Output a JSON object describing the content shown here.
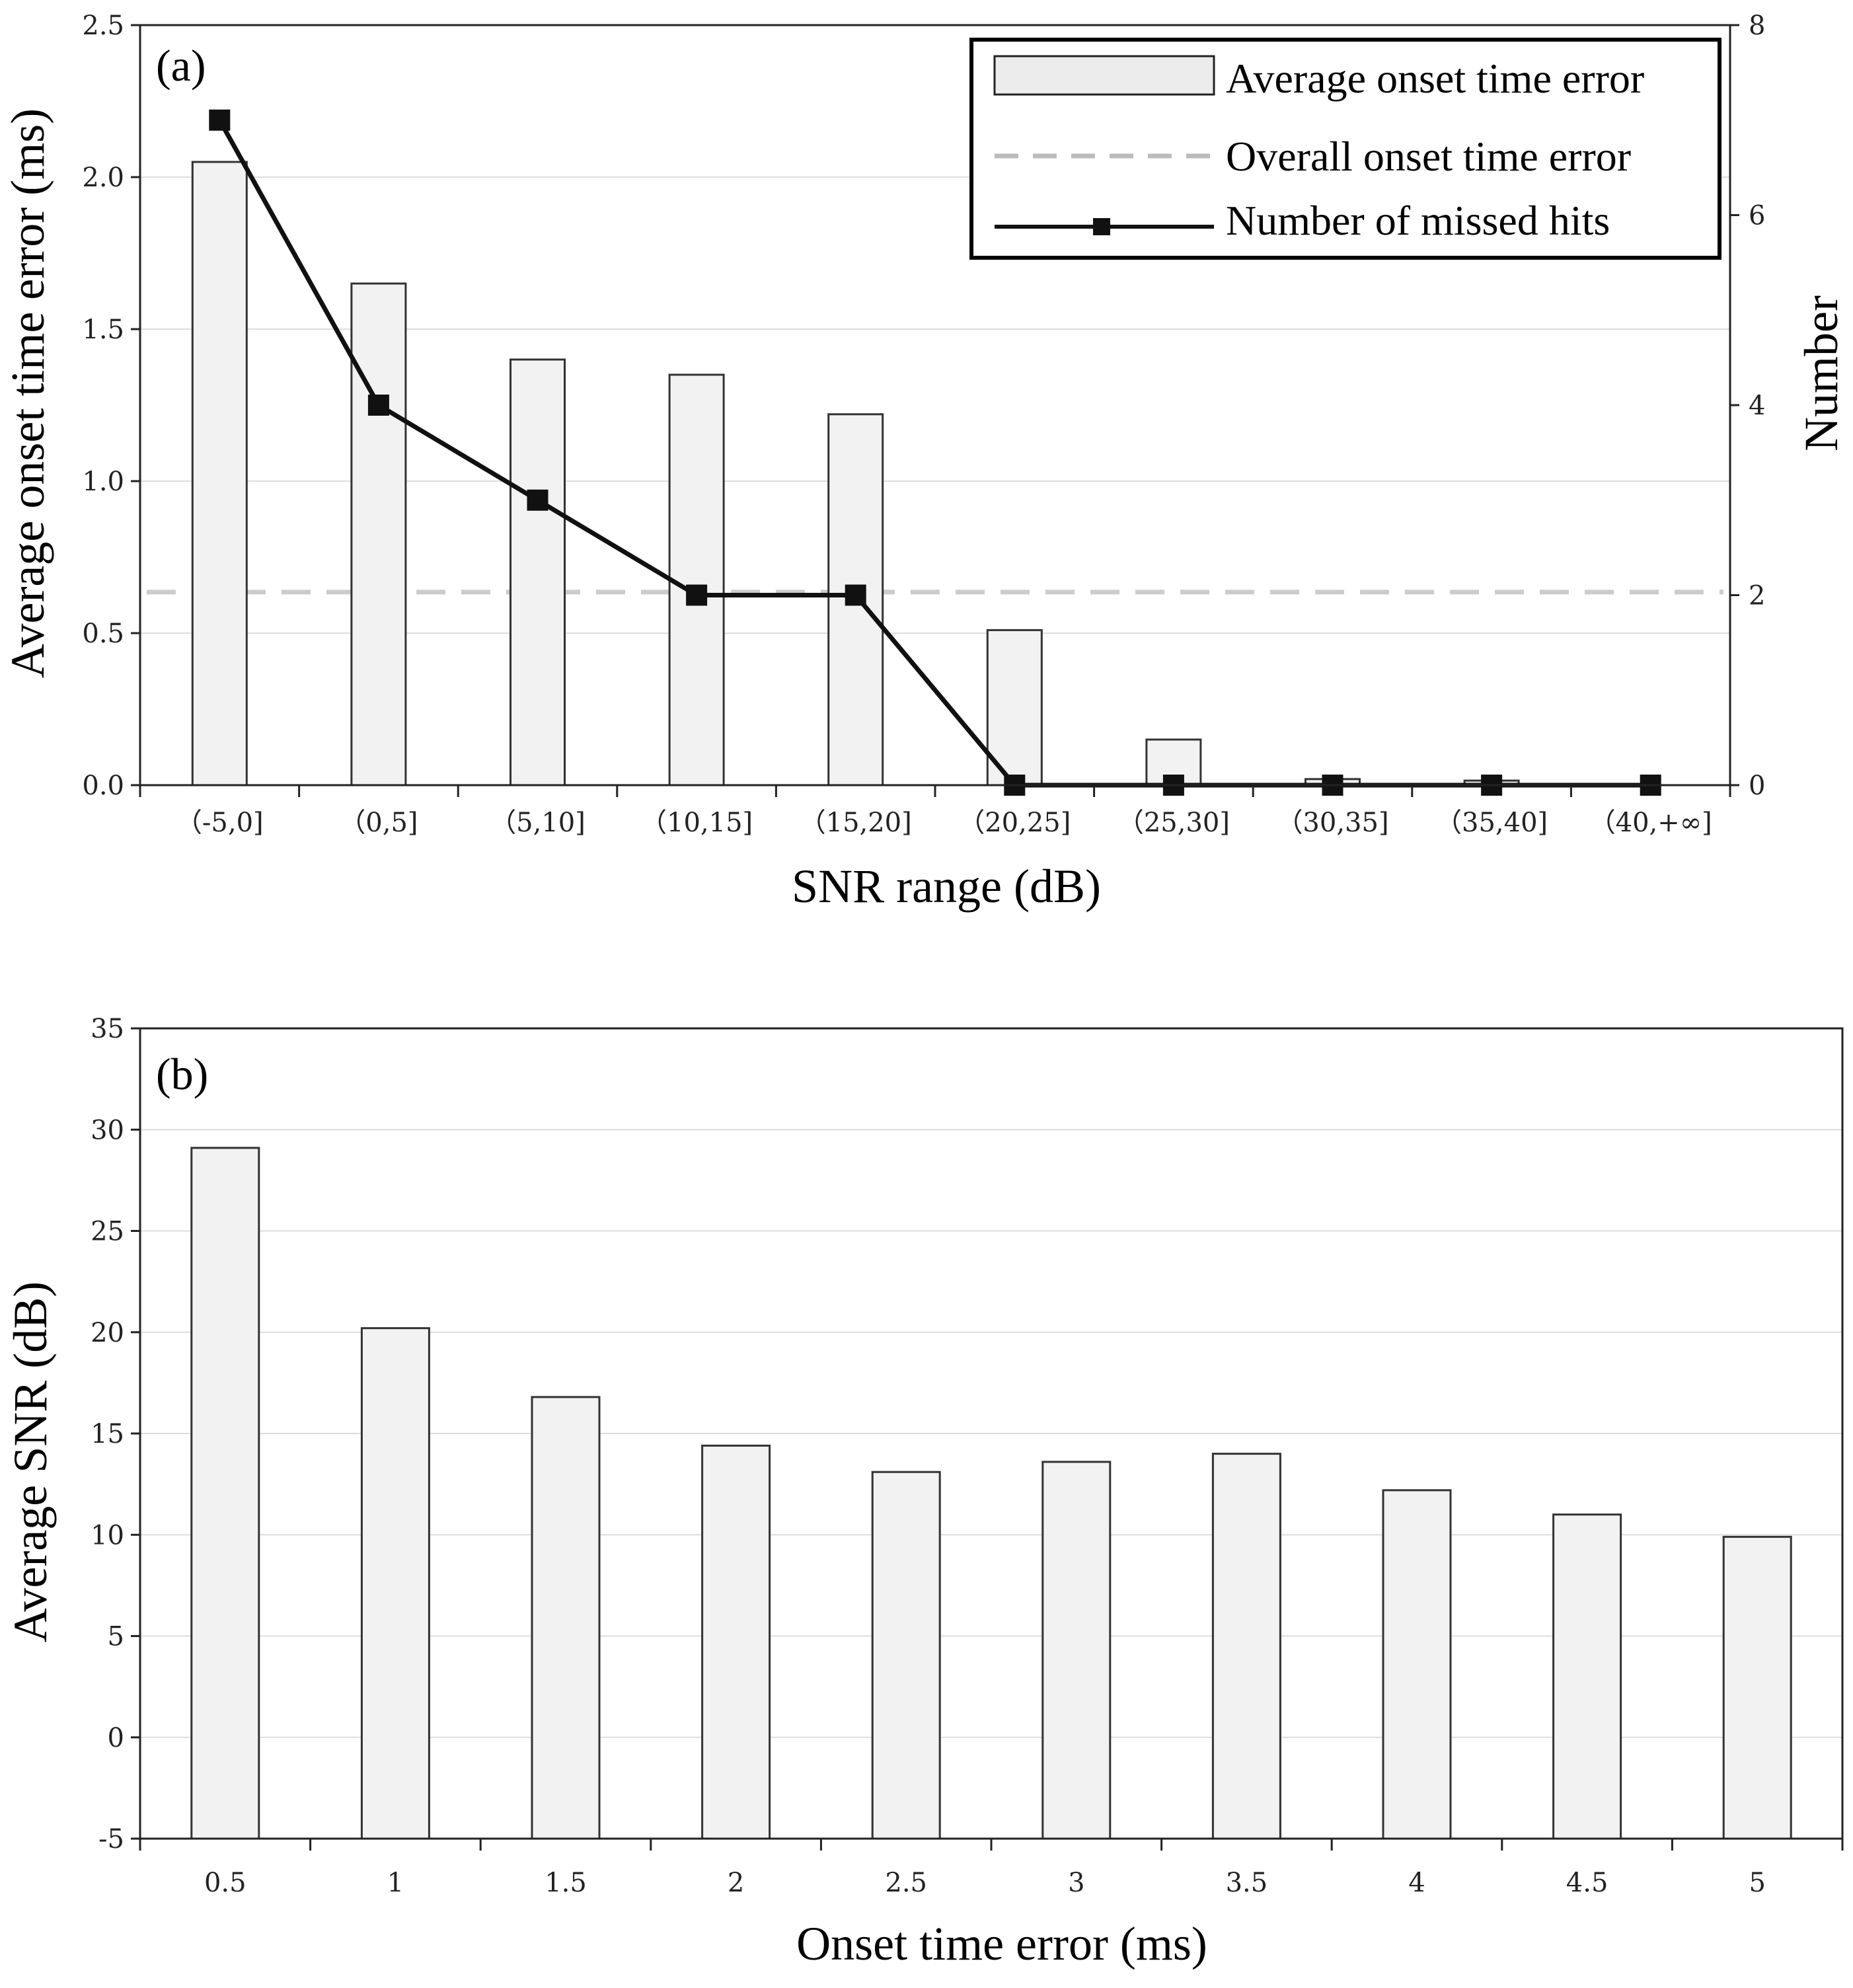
{
  "chart_data": [
    {
      "type": "bar",
      "panel_label": "(a)",
      "categories": [
        "（-5,0]",
        "（0,5]",
        "（5,10]",
        "（10,15]",
        "（15,20]",
        "（20,25]",
        "（25,30]",
        "（30,35]",
        "（35,40]",
        "（40,+∞]"
      ],
      "series": [
        {
          "name": "Average onset time error",
          "kind": "bar",
          "axis": "left",
          "values": [
            2.05,
            1.65,
            1.4,
            1.35,
            1.22,
            0.51,
            0.15,
            0.02,
            0.015,
            0.0
          ]
        },
        {
          "name": "Number of missed hits",
          "kind": "line",
          "axis": "right",
          "values": [
            7,
            4,
            3,
            2,
            2,
            0,
            0,
            0,
            0,
            0
          ]
        }
      ],
      "reference_lines": [
        {
          "name": "Overall onset time error",
          "axis": "left",
          "value": 0.635
        }
      ],
      "legend": [
        "Average onset time error",
        "Overall onset time error",
        "Number of missed hits"
      ],
      "legend_position": "top-right",
      "xlabel": "SNR range (dB)",
      "ylabel": "Average onset time error (ms)",
      "ylabel_right": "Number",
      "ylim": [
        0,
        2.5
      ],
      "yticks": [
        "0.0",
        "0.5",
        "1.0",
        "1.5",
        "2.0",
        "2.5"
      ],
      "ylim_right": [
        0,
        8
      ],
      "yticks_right": [
        "0",
        "2",
        "4",
        "6",
        "8"
      ],
      "grid": true
    },
    {
      "type": "bar",
      "panel_label": "(b)",
      "categories": [
        "0.5",
        "1",
        "1.5",
        "2",
        "2.5",
        "3",
        "3.5",
        "4",
        "4.5",
        "5"
      ],
      "values": [
        29.1,
        20.2,
        16.8,
        14.4,
        13.1,
        13.6,
        14.0,
        12.2,
        11.0,
        9.9
      ],
      "xlabel": "Onset time error (ms)",
      "ylabel": "Average SNR (dB)",
      "ylim": [
        -5,
        35
      ],
      "yticks": [
        "-5",
        "0",
        "5",
        "10",
        "15",
        "20",
        "25",
        "30",
        "35"
      ],
      "grid": true
    }
  ],
  "colors": {
    "bar_fill": "#f2f2f2",
    "bar_edge": "#333333",
    "line": "#111111",
    "reference_line": "#cccccc",
    "grid": "#dddddd"
  }
}
